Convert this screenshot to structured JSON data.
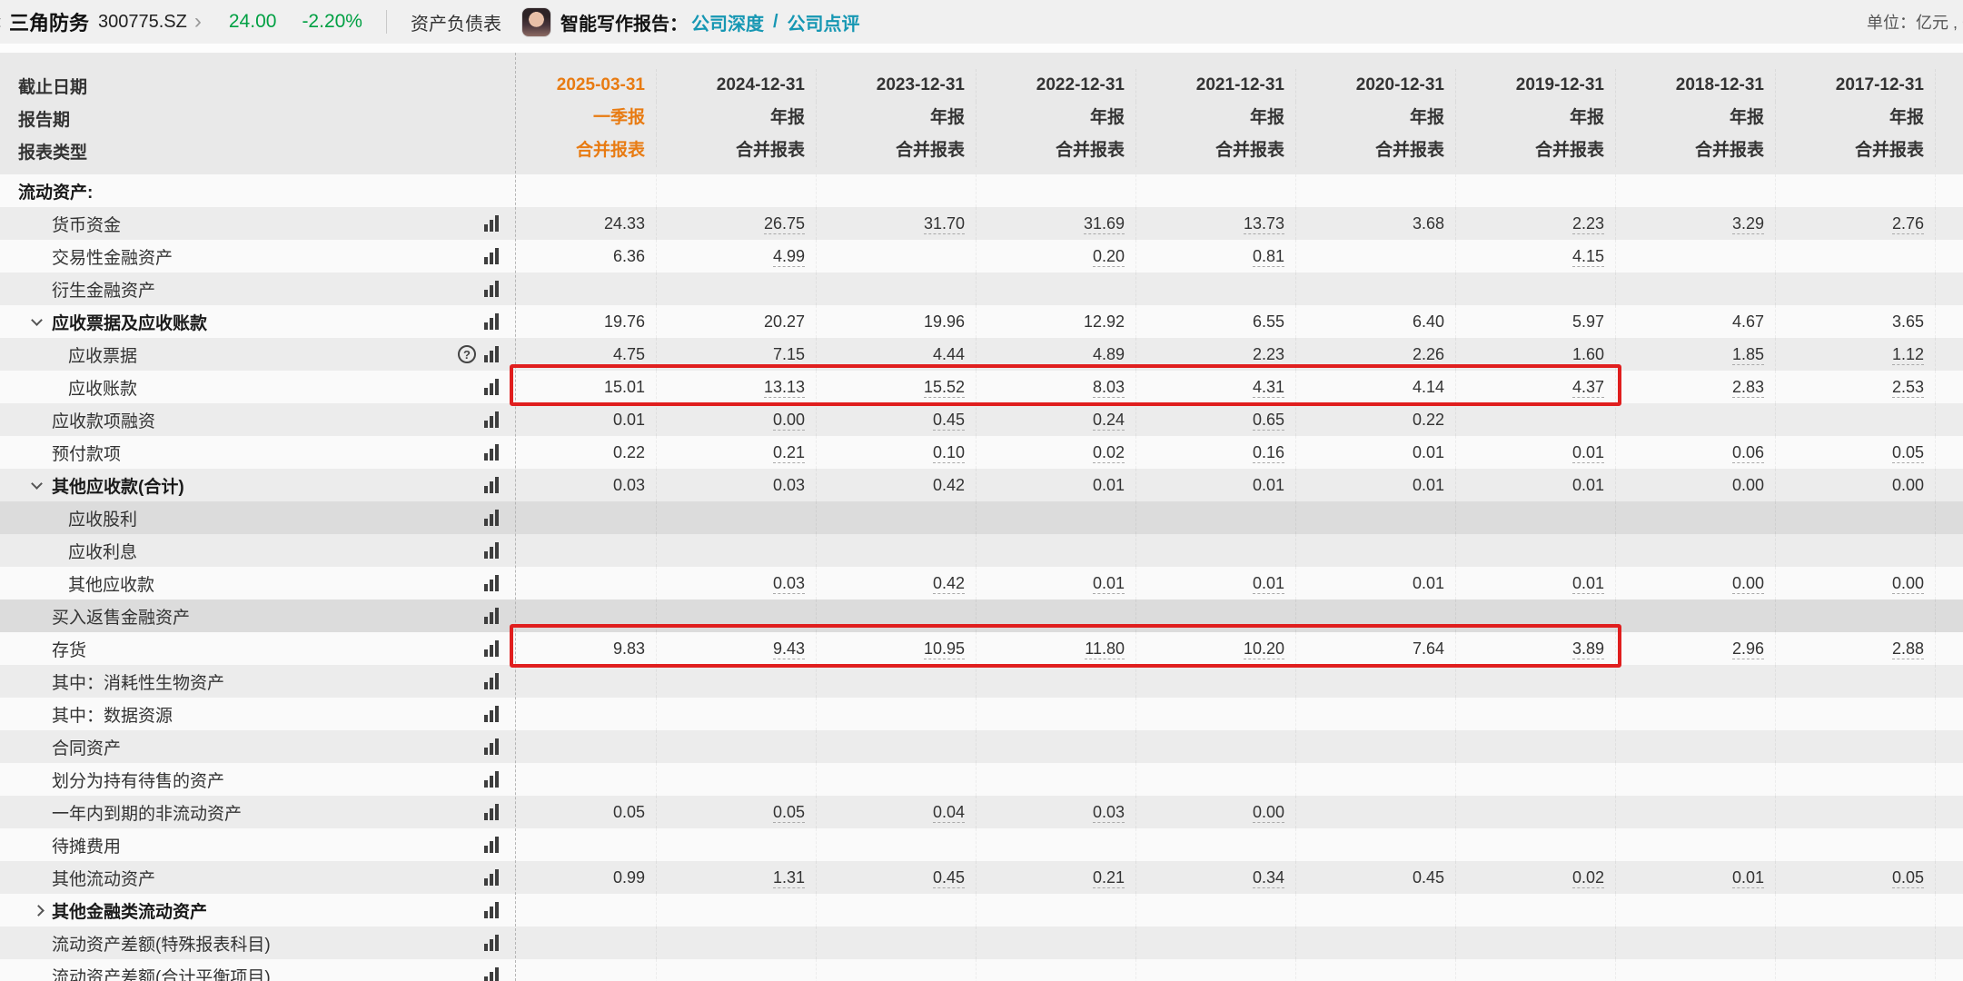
{
  "topbar": {
    "back_chevron": "‹",
    "stock_name": "三角防务",
    "stock_code": "300775.SZ",
    "fwd_chevron": "›",
    "price": "24.00",
    "change": "-2.20%",
    "sheet_tab": "资产负债表",
    "ai_report_label": "智能写作报告：",
    "link_depth": "公司深度",
    "link_slash": "/",
    "link_comment": "公司点评",
    "unit_label": "单位：亿元 , C"
  },
  "colors": {
    "price_green": "#00a043",
    "link_teal": "#1697b3",
    "highlight_orange": "#e87b12",
    "redbox_red": "#e01e1e",
    "header_bg": "#e9e9e9",
    "stripe_gray": "#ececec",
    "stripe_dark": "#dcdcdc"
  },
  "table": {
    "header_rows": [
      "截止日期",
      "报告期",
      "报表类型"
    ],
    "columns": [
      {
        "date": "2025-03-31",
        "period": "一季报",
        "type": "合并报表",
        "highlight": true
      },
      {
        "date": "2024-12-31",
        "period": "年报",
        "type": "合并报表",
        "highlight": false
      },
      {
        "date": "2023-12-31",
        "period": "年报",
        "type": "合并报表",
        "highlight": false
      },
      {
        "date": "2022-12-31",
        "period": "年报",
        "type": "合并报表",
        "highlight": false
      },
      {
        "date": "2021-12-31",
        "period": "年报",
        "type": "合并报表",
        "highlight": false
      },
      {
        "date": "2020-12-31",
        "period": "年报",
        "type": "合并报表",
        "highlight": false
      },
      {
        "date": "2019-12-31",
        "period": "年报",
        "type": "合并报表",
        "highlight": false
      },
      {
        "date": "2018-12-31",
        "period": "年报",
        "type": "合并报表",
        "highlight": false
      },
      {
        "date": "2017-12-31",
        "period": "年报",
        "type": "合并报表",
        "highlight": false
      }
    ],
    "rows": [
      {
        "label": "流动资产:",
        "indent": 0,
        "bold": true,
        "arrow": null,
        "help": false,
        "chart": false,
        "shade": "s",
        "leaf": false,
        "values": [
          "",
          "",
          "",
          "",
          "",
          "",
          "",
          "",
          ""
        ]
      },
      {
        "label": "货币资金",
        "indent": 1,
        "bold": false,
        "arrow": null,
        "help": false,
        "chart": true,
        "shade": "g",
        "leaf": true,
        "values": [
          "24.33",
          "26.75",
          "31.70",
          "31.69",
          "13.73",
          "3.68",
          "2.23",
          "3.29",
          "2.76"
        ]
      },
      {
        "label": "交易性金融资产",
        "indent": 1,
        "bold": false,
        "arrow": null,
        "help": false,
        "chart": true,
        "shade": "w",
        "leaf": true,
        "values": [
          "6.36",
          "4.99",
          "",
          "0.20",
          "0.81",
          "",
          "4.15",
          "",
          ""
        ]
      },
      {
        "label": "衍生金融资产",
        "indent": 1,
        "bold": false,
        "arrow": null,
        "help": false,
        "chart": true,
        "shade": "g",
        "leaf": true,
        "values": [
          "",
          "",
          "",
          "",
          "",
          "",
          "",
          "",
          ""
        ]
      },
      {
        "label": "应收票据及应收账款",
        "indent": 1,
        "bold": true,
        "arrow": "down",
        "help": false,
        "chart": true,
        "shade": "w",
        "leaf": false,
        "values": [
          "19.76",
          "20.27",
          "19.96",
          "12.92",
          "6.55",
          "6.40",
          "5.97",
          "4.67",
          "3.65"
        ]
      },
      {
        "label": "应收票据",
        "indent": 2,
        "bold": false,
        "arrow": null,
        "help": true,
        "chart": true,
        "shade": "g",
        "leaf": true,
        "values": [
          "4.75",
          "7.15",
          "4.44",
          "4.89",
          "2.23",
          "2.26",
          "1.60",
          "1.85",
          "1.12"
        ]
      },
      {
        "label": "应收账款",
        "indent": 2,
        "bold": false,
        "arrow": null,
        "help": false,
        "chart": true,
        "shade": "w",
        "leaf": true,
        "values": [
          "15.01",
          "13.13",
          "15.52",
          "8.03",
          "4.31",
          "4.14",
          "4.37",
          "2.83",
          "2.53"
        ]
      },
      {
        "label": "应收款项融资",
        "indent": 1,
        "bold": false,
        "arrow": null,
        "help": false,
        "chart": true,
        "shade": "g",
        "leaf": true,
        "values": [
          "0.01",
          "0.00",
          "0.45",
          "0.24",
          "0.65",
          "0.22",
          "",
          "",
          ""
        ]
      },
      {
        "label": "预付款项",
        "indent": 1,
        "bold": false,
        "arrow": null,
        "help": false,
        "chart": true,
        "shade": "w",
        "leaf": true,
        "values": [
          "0.22",
          "0.21",
          "0.10",
          "0.02",
          "0.16",
          "0.01",
          "0.01",
          "0.06",
          "0.05"
        ]
      },
      {
        "label": "其他应收款(合计)",
        "indent": 1,
        "bold": true,
        "arrow": "down",
        "help": false,
        "chart": true,
        "shade": "g",
        "leaf": false,
        "values": [
          "0.03",
          "0.03",
          "0.42",
          "0.01",
          "0.01",
          "0.01",
          "0.01",
          "0.00",
          "0.00"
        ]
      },
      {
        "label": "应收股利",
        "indent": 2,
        "bold": false,
        "arrow": null,
        "help": false,
        "chart": true,
        "shade": "d",
        "leaf": true,
        "values": [
          "",
          "",
          "",
          "",
          "",
          "",
          "",
          "",
          ""
        ]
      },
      {
        "label": "应收利息",
        "indent": 2,
        "bold": false,
        "arrow": null,
        "help": false,
        "chart": true,
        "shade": "g",
        "leaf": true,
        "values": [
          "",
          "",
          "",
          "",
          "",
          "",
          "",
          "",
          ""
        ]
      },
      {
        "label": "其他应收款",
        "indent": 2,
        "bold": false,
        "arrow": null,
        "help": false,
        "chart": true,
        "shade": "w",
        "leaf": true,
        "values": [
          "",
          "0.03",
          "0.42",
          "0.01",
          "0.01",
          "0.01",
          "0.01",
          "0.00",
          "0.00"
        ]
      },
      {
        "label": "买入返售金融资产",
        "indent": 1,
        "bold": false,
        "arrow": null,
        "help": false,
        "chart": true,
        "shade": "d",
        "leaf": true,
        "values": [
          "",
          "",
          "",
          "",
          "",
          "",
          "",
          "",
          ""
        ]
      },
      {
        "label": "存货",
        "indent": 1,
        "bold": false,
        "arrow": null,
        "help": false,
        "chart": true,
        "shade": "w",
        "leaf": true,
        "values": [
          "9.83",
          "9.43",
          "10.95",
          "11.80",
          "10.20",
          "7.64",
          "3.89",
          "2.96",
          "2.88"
        ]
      },
      {
        "label": "其中：消耗性生物资产",
        "indent": 1,
        "bold": false,
        "arrow": null,
        "help": false,
        "chart": true,
        "shade": "g",
        "leaf": true,
        "values": [
          "",
          "",
          "",
          "",
          "",
          "",
          "",
          "",
          ""
        ]
      },
      {
        "label": "其中：数据资源",
        "indent": 1,
        "bold": false,
        "arrow": null,
        "help": false,
        "chart": true,
        "shade": "w",
        "leaf": true,
        "values": [
          "",
          "",
          "",
          "",
          "",
          "",
          "",
          "",
          ""
        ]
      },
      {
        "label": "合同资产",
        "indent": 1,
        "bold": false,
        "arrow": null,
        "help": false,
        "chart": true,
        "shade": "g",
        "leaf": true,
        "values": [
          "",
          "",
          "",
          "",
          "",
          "",
          "",
          "",
          ""
        ]
      },
      {
        "label": "划分为持有待售的资产",
        "indent": 1,
        "bold": false,
        "arrow": null,
        "help": false,
        "chart": true,
        "shade": "w",
        "leaf": true,
        "values": [
          "",
          "",
          "",
          "",
          "",
          "",
          "",
          "",
          ""
        ]
      },
      {
        "label": "一年内到期的非流动资产",
        "indent": 1,
        "bold": false,
        "arrow": null,
        "help": false,
        "chart": true,
        "shade": "g",
        "leaf": true,
        "values": [
          "0.05",
          "0.05",
          "0.04",
          "0.03",
          "0.00",
          "",
          "",
          "",
          ""
        ]
      },
      {
        "label": "待摊费用",
        "indent": 1,
        "bold": false,
        "arrow": null,
        "help": false,
        "chart": true,
        "shade": "w",
        "leaf": true,
        "values": [
          "",
          "",
          "",
          "",
          "",
          "",
          "",
          "",
          ""
        ]
      },
      {
        "label": "其他流动资产",
        "indent": 1,
        "bold": false,
        "arrow": null,
        "help": false,
        "chart": true,
        "shade": "g",
        "leaf": true,
        "values": [
          "0.99",
          "1.31",
          "0.45",
          "0.21",
          "0.34",
          "0.45",
          "0.02",
          "0.01",
          "0.05"
        ]
      },
      {
        "label": "其他金融类流动资产",
        "indent": 1,
        "bold": true,
        "arrow": "right",
        "help": false,
        "chart": true,
        "shade": "w",
        "leaf": false,
        "values": [
          "",
          "",
          "",
          "",
          "",
          "",
          "",
          "",
          ""
        ]
      },
      {
        "label": "流动资产差额(特殊报表科目)",
        "indent": 1,
        "bold": false,
        "arrow": null,
        "help": false,
        "chart": true,
        "shade": "g",
        "leaf": true,
        "values": [
          "",
          "",
          "",
          "",
          "",
          "",
          "",
          "",
          ""
        ]
      },
      {
        "label": "流动资产差额(合计平衡项目)",
        "indent": 1,
        "bold": false,
        "arrow": null,
        "help": false,
        "chart": true,
        "shade": "w",
        "leaf": true,
        "values": [
          "",
          "",
          "",
          "",
          "",
          "",
          "",
          "",
          ""
        ]
      }
    ]
  }
}
